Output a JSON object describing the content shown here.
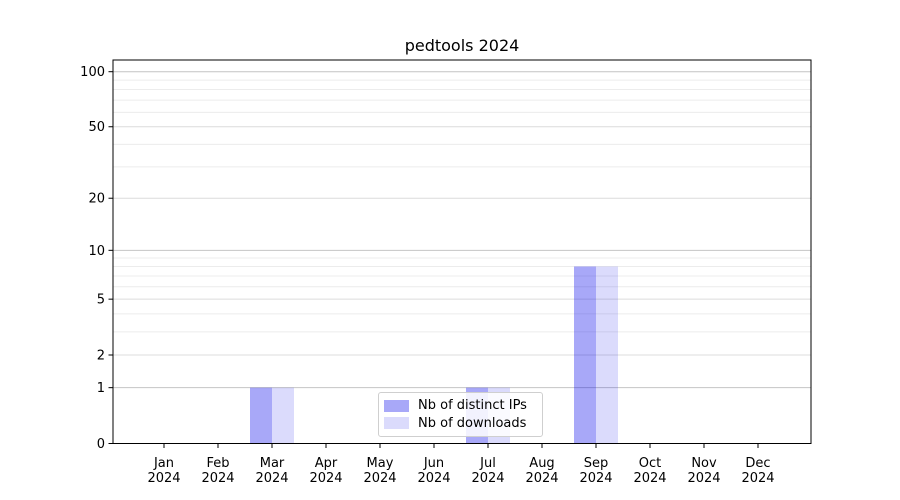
{
  "chart_data": {
    "type": "bar",
    "title": "pedtools 2024",
    "categories": [
      {
        "month": "Jan",
        "year": "2024"
      },
      {
        "month": "Feb",
        "year": "2024"
      },
      {
        "month": "Mar",
        "year": "2024"
      },
      {
        "month": "Apr",
        "year": "2024"
      },
      {
        "month": "May",
        "year": "2024"
      },
      {
        "month": "Jun",
        "year": "2024"
      },
      {
        "month": "Jul",
        "year": "2024"
      },
      {
        "month": "Aug",
        "year": "2024"
      },
      {
        "month": "Sep",
        "year": "2024"
      },
      {
        "month": "Oct",
        "year": "2024"
      },
      {
        "month": "Nov",
        "year": "2024"
      },
      {
        "month": "Dec",
        "year": "2024"
      }
    ],
    "series": [
      {
        "name": "Nb of distinct IPs",
        "color": "rgba(0,0,235,0.34)",
        "values": [
          0,
          0,
          1,
          0,
          0,
          0,
          1,
          0,
          8,
          0,
          0,
          0
        ]
      },
      {
        "name": "Nb of downloads",
        "color": "rgba(0,0,235,0.14)",
        "values": [
          0,
          0,
          1,
          0,
          0,
          0,
          1,
          0,
          8,
          0,
          0,
          0
        ]
      }
    ],
    "y_axis": {
      "scale": "log1p",
      "ticks": [
        0,
        1,
        2,
        5,
        10,
        20,
        50,
        100
      ],
      "minor_gridlines": [
        3,
        4,
        6,
        7,
        8,
        9,
        30,
        40,
        60,
        70,
        80,
        90
      ],
      "range": [
        0,
        116
      ],
      "grid": true
    },
    "legend": {
      "position": "lower center"
    },
    "colors": {
      "decade_grid": "#c4c4c4",
      "major_grid": "#dcdcdc",
      "minor_grid": "#ececec",
      "axis": "#000000",
      "tick_label": "#000000"
    }
  }
}
